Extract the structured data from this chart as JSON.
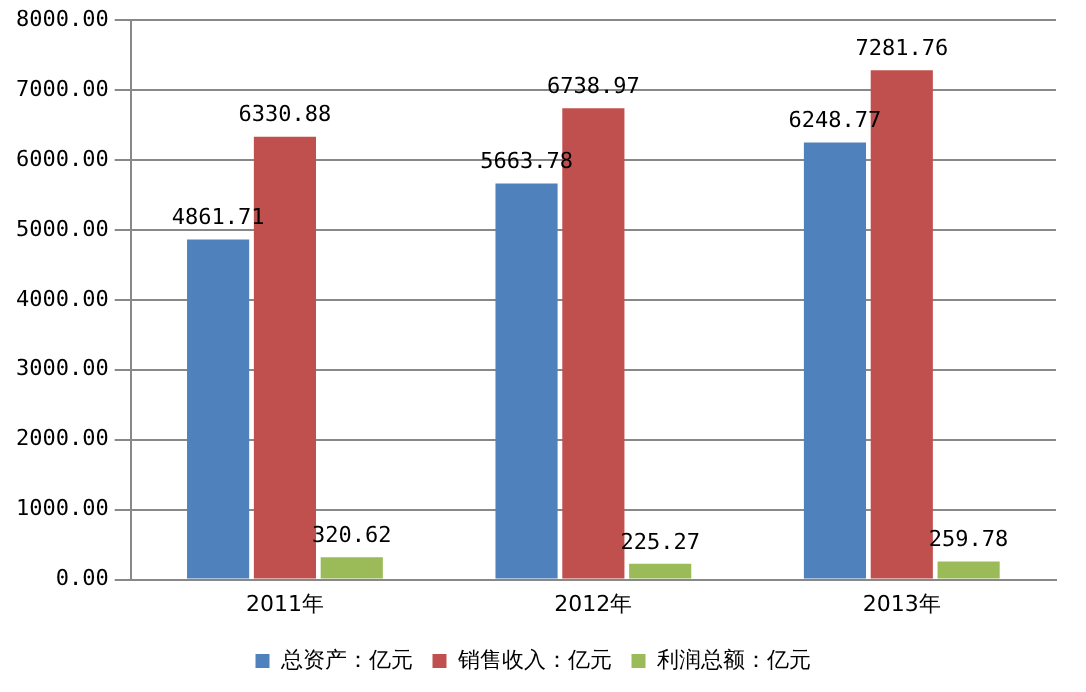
{
  "chart_data": {
    "type": "bar",
    "categories": [
      "2011年",
      "2012年",
      "2013年"
    ],
    "series": [
      {
        "name": "总资产：亿元",
        "color": "#4f81bd",
        "values": [
          4861.71,
          5663.78,
          6248.77
        ]
      },
      {
        "name": "销售收入：亿元",
        "color": "#c0504d",
        "values": [
          6330.88,
          6738.97,
          7281.76
        ]
      },
      {
        "name": "利润总额：亿元",
        "color": "#9bbb59",
        "values": [
          320.62,
          225.27,
          259.78
        ]
      }
    ],
    "ylim": [
      0,
      8000
    ],
    "yticks": [
      {
        "value": 0,
        "label": "0.00"
      },
      {
        "value": 1000,
        "label": "1000.00"
      },
      {
        "value": 2000,
        "label": "2000.00"
      },
      {
        "value": 3000,
        "label": "3000.00"
      },
      {
        "value": 4000,
        "label": "4000.00"
      },
      {
        "value": 5000,
        "label": "5000.00"
      },
      {
        "value": 6000,
        "label": "6000.00"
      },
      {
        "value": 7000,
        "label": "7000.00"
      },
      {
        "value": 8000,
        "label": "8000.00"
      }
    ],
    "grid": "y",
    "legend": "bottom",
    "data_labels": true
  }
}
